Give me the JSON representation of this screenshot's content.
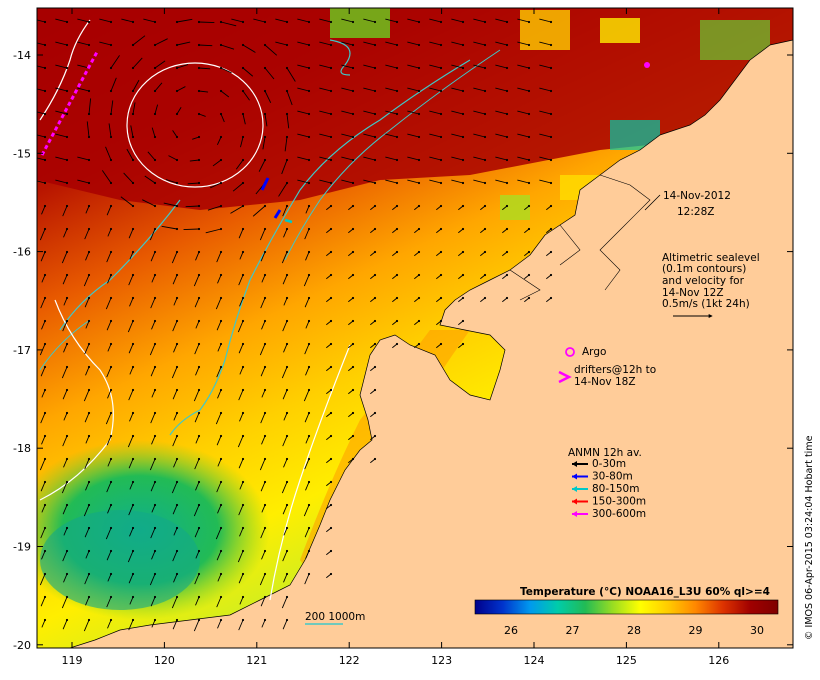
{
  "map": {
    "date": "14-Nov-2012",
    "time": "12:28Z",
    "altimetry_note": [
      "Altimetric sealevel",
      "(0.1m contours)",
      "and velocity for",
      "14-Nov 12Z",
      "0.5m/s (1kt 24h)"
    ],
    "argo_label": "Argo",
    "drifters_label": [
      "drifters@12h to",
      "14-Nov 18Z"
    ],
    "anmn_title": "ANMN 12h av.",
    "anmn_legend": [
      {
        "label": "0-30m",
        "color": "#000000"
      },
      {
        "label": "30-80m",
        "color": "#0000ff"
      },
      {
        "label": "80-150m",
        "color": "#00c8c8"
      },
      {
        "label": "150-300m",
        "color": "#ff0000"
      },
      {
        "label": "300-600m",
        "color": "#ff00ff"
      }
    ],
    "contour_label": "200  1000m",
    "colorbar": {
      "title": "Temperature (°C) NOAA16_L3U 60% ql>=4",
      "ticks": [
        "26",
        "27",
        "28",
        "29",
        "30"
      ],
      "colors": [
        "#00008b",
        "#0033cc",
        "#0099ee",
        "#00ccaa",
        "#22bb55",
        "#99dd22",
        "#ffff00",
        "#ffcc00",
        "#ff8800",
        "#dd3300",
        "#a00000",
        "#7f0000"
      ]
    },
    "credit": "© IMOS 06-Apr-2015 03:24:04 Hobart time",
    "x_ticks": [
      "119",
      "120",
      "121",
      "122",
      "123",
      "124",
      "125",
      "126"
    ],
    "y_ticks": [
      "-14",
      "-15",
      "-16",
      "-17",
      "-18",
      "-19",
      "-20"
    ],
    "land_color": "#ffcc99",
    "drifter_color": "#ff00ff",
    "bathy_color": "#40c8c8",
    "sealevel_color": "#ffffff"
  }
}
